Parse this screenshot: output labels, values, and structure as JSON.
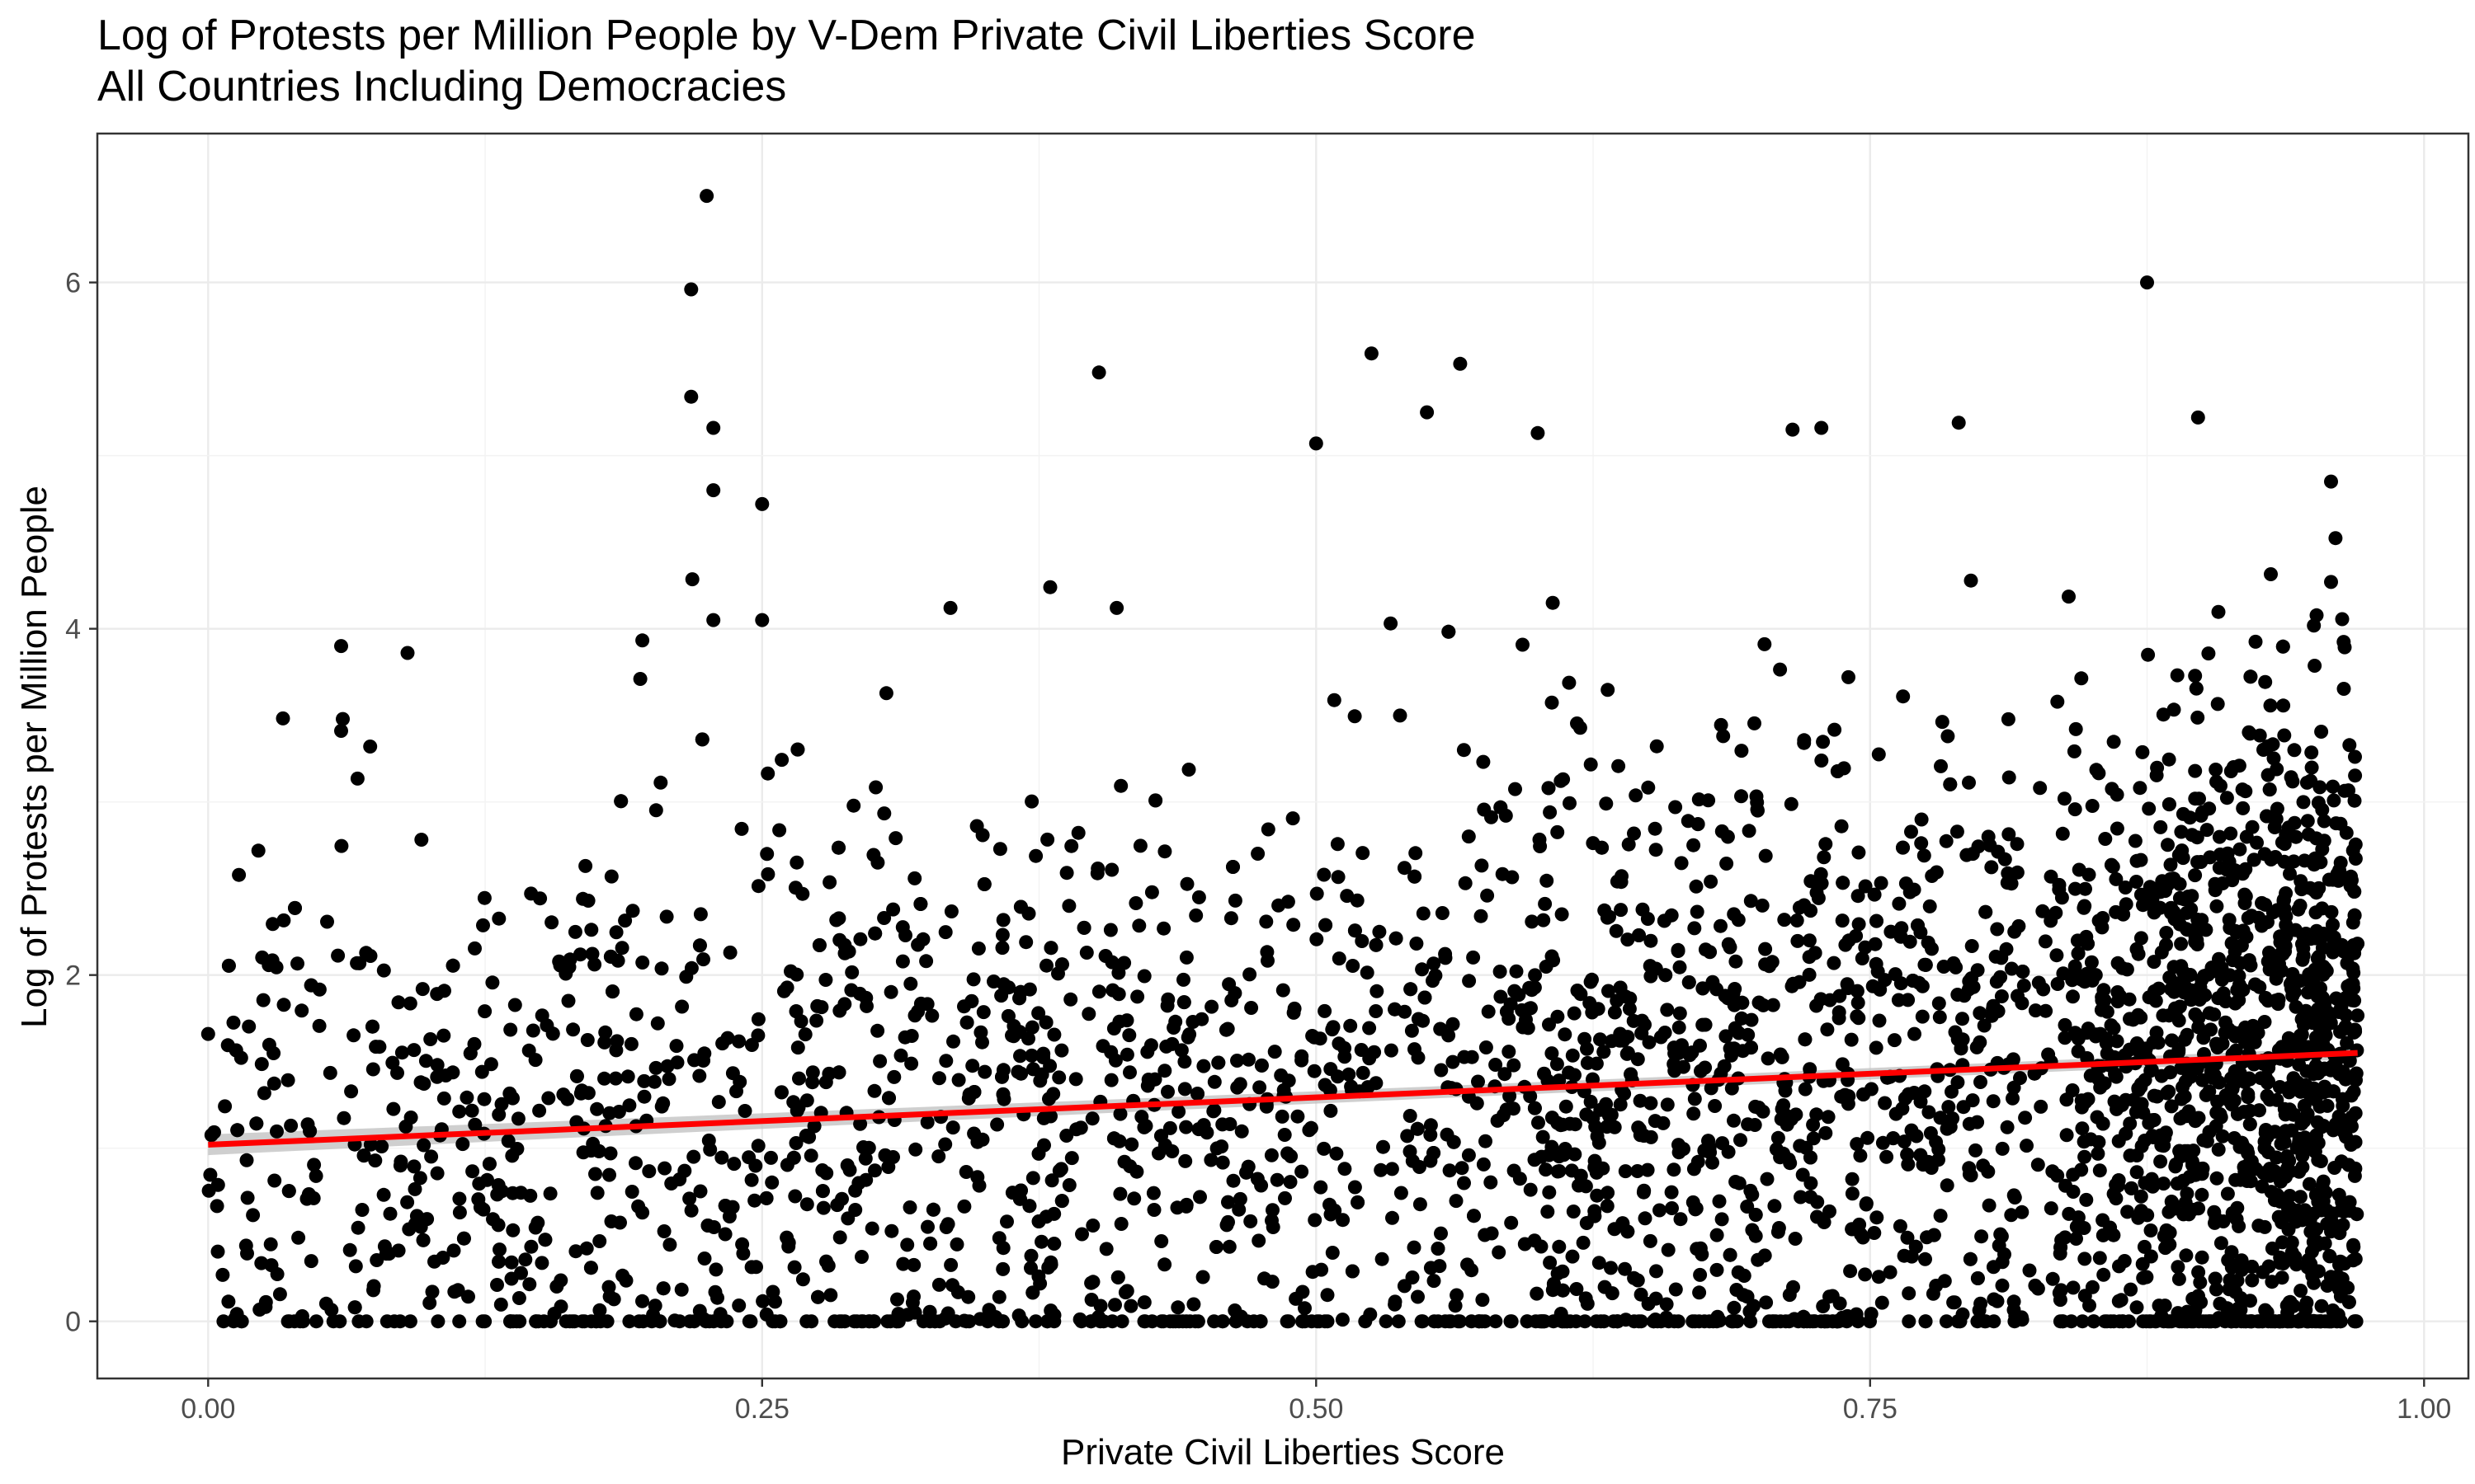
{
  "chart_data": {
    "type": "scatter",
    "title": "Log of Protests per Million People by V-Dem Private Civil Liberties Score",
    "subtitle": "All Countries Including Democracies",
    "xlabel": "Private Civil Liberties Score",
    "ylabel": "Log of Protests per Million People",
    "xlim": [
      -0.05,
      1.02
    ],
    "ylim": [
      -0.33,
      6.86
    ],
    "x_ticks": [
      0,
      0.25,
      0.5,
      0.75,
      1
    ],
    "x_tick_labels": [
      "0.00",
      "0.25",
      "0.50",
      "0.75",
      "1.00"
    ],
    "y_ticks": [
      0,
      2,
      4,
      6
    ],
    "y_tick_labels": [
      "0",
      "2",
      "4",
      "6"
    ],
    "grid": true,
    "legend": "none",
    "colors": {
      "points": "#000000",
      "trend": "#ff0000",
      "ribbon": "#bfbfbf",
      "panel_border": "#333333",
      "grid": "#ebebeb"
    },
    "trend_line": {
      "type": "linear",
      "x": [
        0.0,
        0.97
      ],
      "y": [
        1.02,
        1.55
      ],
      "ci_halfwidth": [
        0.06,
        0.025,
        0.035
      ]
    },
    "notable_points": [
      [
        0.225,
        6.5
      ],
      [
        0.218,
        5.96
      ],
      [
        0.875,
        6.0
      ],
      [
        0.218,
        5.34
      ],
      [
        0.228,
        5.16
      ],
      [
        0.402,
        5.48
      ],
      [
        0.525,
        5.59
      ],
      [
        0.565,
        5.53
      ],
      [
        0.898,
        5.22
      ],
      [
        0.79,
        5.19
      ],
      [
        0.715,
        5.15
      ],
      [
        0.728,
        5.16
      ],
      [
        0.228,
        4.8
      ],
      [
        0.25,
        4.72
      ],
      [
        0.228,
        4.05
      ],
      [
        0.25,
        4.05
      ],
      [
        0.06,
        3.9
      ],
      [
        0.09,
        3.86
      ],
      [
        0.06,
        3.41
      ],
      [
        0.195,
        3.71
      ],
      [
        0.958,
        4.85
      ],
      [
        0.958,
        4.27
      ],
      [
        0.41,
        4.12
      ],
      [
        0.335,
        4.12
      ],
      [
        0.38,
        4.24
      ],
      [
        0.6,
        5.13
      ],
      [
        0.55,
        5.25
      ],
      [
        0.5,
        5.07
      ],
      [
        0.015,
        0.0
      ],
      [
        0.0,
        1.66
      ]
    ]
  }
}
